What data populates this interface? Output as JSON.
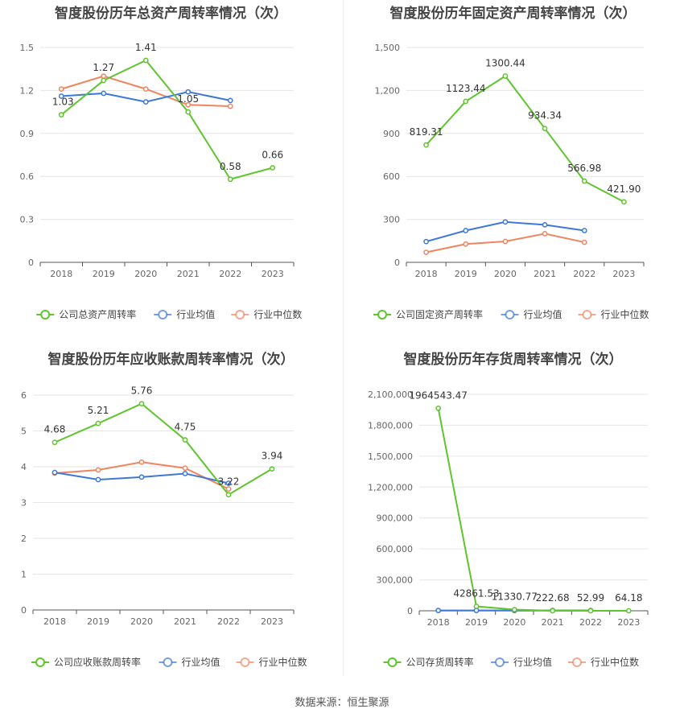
{
  "source": "数据来源：恒生聚源",
  "colors": {
    "company": "#5ec52c",
    "avg": "#3d78d8",
    "median": "#f0845f"
  },
  "legend_labels": {
    "avg": "行业均值",
    "median": "行业中位数"
  },
  "chart_data": [
    {
      "type": "line",
      "title": "智度股份历年总资产周转率情况（次）",
      "categories": [
        "2018",
        "2019",
        "2020",
        "2021",
        "2022",
        "2023"
      ],
      "ylim": [
        0,
        1.5
      ],
      "yticks": [
        "0",
        "0.3",
        "0.6",
        "0.9",
        "1.2",
        "1.5"
      ],
      "series": [
        {
          "name": "公司总资产周转率",
          "key": "company",
          "values": [
            1.03,
            1.27,
            1.41,
            1.05,
            0.58,
            0.66
          ],
          "labels": [
            "1.03",
            "1.27",
            "1.41",
            "1.05",
            "0.58",
            "0.66"
          ]
        },
        {
          "name": "行业均值",
          "key": "avg",
          "values": [
            1.16,
            1.18,
            1.12,
            1.19,
            1.13,
            null
          ]
        },
        {
          "name": "行业中位数",
          "key": "median",
          "values": [
            1.21,
            1.3,
            1.21,
            1.1,
            1.09,
            null
          ]
        }
      ]
    },
    {
      "type": "line",
      "title": "智度股份历年固定资产周转率情况（次）",
      "categories": [
        "2018",
        "2019",
        "2020",
        "2021",
        "2022",
        "2023"
      ],
      "ylim": [
        0,
        1500
      ],
      "yticks": [
        "0",
        "300",
        "600",
        "900",
        "1,200",
        "1,500"
      ],
      "series": [
        {
          "name": "公司固定资产周转率",
          "key": "company",
          "values": [
            819.31,
            1123.44,
            1300.44,
            934.34,
            566.98,
            421.9
          ],
          "labels": [
            "819.31",
            "1123.44",
            "1300.44",
            "934.34",
            "566.98",
            "421.90"
          ]
        },
        {
          "name": "行业均值",
          "key": "avg",
          "values": [
            145,
            222,
            282,
            262,
            222,
            null
          ]
        },
        {
          "name": "行业中位数",
          "key": "median",
          "values": [
            70,
            128,
            146,
            200,
            140,
            null
          ]
        }
      ]
    },
    {
      "type": "line",
      "title": "智度股份历年应收账款周转率情况（次）",
      "categories": [
        "2018",
        "2019",
        "2020",
        "2021",
        "2022",
        "2023"
      ],
      "ylim": [
        0,
        6
      ],
      "yticks": [
        "0",
        "1",
        "2",
        "3",
        "4",
        "5",
        "6"
      ],
      "series": [
        {
          "name": "公司应收账款周转率",
          "key": "company",
          "values": [
            4.68,
            5.21,
            5.76,
            4.75,
            3.22,
            3.94
          ],
          "labels": [
            "4.68",
            "5.21",
            "5.76",
            "4.75",
            "3.22",
            "3.94"
          ]
        },
        {
          "name": "行业均值",
          "key": "avg",
          "values": [
            3.84,
            3.64,
            3.71,
            3.81,
            3.54,
            null
          ]
        },
        {
          "name": "行业中位数",
          "key": "median",
          "values": [
            3.82,
            3.91,
            4.13,
            3.96,
            3.38,
            null
          ]
        }
      ]
    },
    {
      "type": "line",
      "title": "智度股份历年存货周转率情况（次）",
      "categories": [
        "2018",
        "2019",
        "2020",
        "2021",
        "2022",
        "2023"
      ],
      "ylim": [
        0,
        2100000
      ],
      "yticks": [
        "0",
        "300,000",
        "600,000",
        "900,000",
        "1,200,000",
        "1,500,000",
        "1,800,000",
        "2,100,000"
      ],
      "series": [
        {
          "name": "公司存货周转率",
          "key": "company",
          "values": [
            1964543.47,
            42861.53,
            11330.77,
            222.68,
            52.99,
            64.18
          ],
          "labels": [
            "1964543.47",
            "42861.53",
            "11330.77",
            "222.68",
            "52.99",
            "64.18"
          ]
        },
        {
          "name": "行业均值",
          "key": "avg",
          "values": [
            3000,
            3000,
            3000,
            3000,
            3000,
            null
          ]
        },
        {
          "name": "行业中位数",
          "key": "median",
          "values": [
            2000,
            2000,
            2000,
            2000,
            2000,
            null
          ]
        }
      ]
    }
  ]
}
